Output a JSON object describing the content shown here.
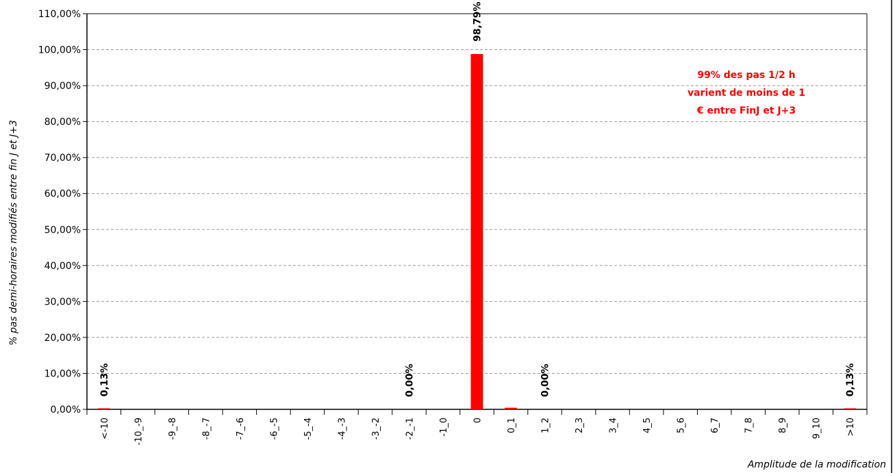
{
  "chart_data": {
    "type": "bar",
    "categories": [
      "<-10",
      "-10_-9",
      "-9_-8",
      "-8_-7",
      "-7_-6",
      "-6_-5",
      "-5_-4",
      "-4_-3",
      "-3_-2",
      "-2_-1",
      "-1_0",
      "0",
      "0_1",
      "1_2",
      "2_3",
      "3_4",
      "4_5",
      "5_6",
      "6_7",
      "7_8",
      "8_9",
      "9_10",
      ">10"
    ],
    "values": [
      0.13,
      0,
      0,
      0,
      0,
      0,
      0,
      0,
      0,
      0.0,
      0,
      98.79,
      0.45,
      0.0,
      0,
      0,
      0,
      0,
      0,
      0,
      0,
      0,
      0.13
    ],
    "data_labels": [
      {
        "index": 0,
        "text": "0,13%"
      },
      {
        "index": 9,
        "text": "0,00%"
      },
      {
        "index": 11,
        "text": "98,79%"
      },
      {
        "index": 13,
        "text": "0,00%"
      },
      {
        "index": 22,
        "text": "0,13%"
      }
    ],
    "yticks": [
      "0,00%",
      "10,00%",
      "20,00%",
      "30,00%",
      "40,00%",
      "50,00%",
      "60,00%",
      "70,00%",
      "80,00%",
      "90,00%",
      "100,00%",
      "110,00%"
    ],
    "ylim": [
      0,
      110
    ],
    "xlabel": "Amplitude de la modification",
    "ylabel": "% pas demi-horaires modifiés entre fin J et J+3",
    "bar_color": "#ff0000",
    "grid": true,
    "annotation": {
      "lines": [
        "99% des pas 1/2 h",
        "varient de moins de 1",
        "€ entre FinJ et J+3"
      ],
      "color": "#ff0000"
    }
  }
}
